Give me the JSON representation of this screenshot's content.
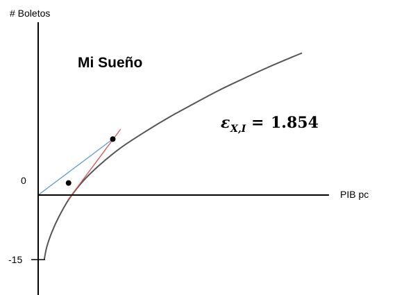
{
  "chart_data": {
    "type": "line",
    "title": "Mi Sueño",
    "ylabel": "# Boletos",
    "xlabel": "PIB pc",
    "yticks": [
      "0",
      "-15"
    ],
    "ytick_values": [
      0,
      -15
    ],
    "annotation": {
      "symbol": "ε",
      "subscript": "X,I",
      "equals": "=",
      "value": "1.854"
    },
    "series": [
      {
        "style": "curve",
        "color": "#555555",
        "x": [
          0.35,
          0.5,
          0.8,
          1.2,
          1.8,
          2.6,
          3.6,
          4.8,
          6.2,
          7.6,
          9.0,
          10.4,
          11.8,
          13.2,
          14.6,
          15.2
        ],
        "y": [
          -15.0,
          -12.0,
          -8.5,
          -5.0,
          -0.8,
          3.3,
          7.2,
          11.1,
          14.8,
          18.2,
          21.3,
          24.3,
          27.0,
          29.6,
          32.0,
          33.0
        ]
      },
      {
        "style": "tangent",
        "color": "#d9534f",
        "x": [
          1.7,
          4.75
        ],
        "y": [
          -1.2,
          15.3
        ]
      },
      {
        "style": "ray",
        "color": "#5b9bd5",
        "x": [
          0.0,
          4.3
        ],
        "y": [
          0.0,
          13.0
        ]
      }
    ],
    "points": [
      {
        "x": 1.75,
        "y": 2.8
      },
      {
        "x": 4.3,
        "y": 13.0
      }
    ],
    "xlim": [
      0,
      15.5
    ],
    "ylim": [
      -16,
      35
    ]
  }
}
